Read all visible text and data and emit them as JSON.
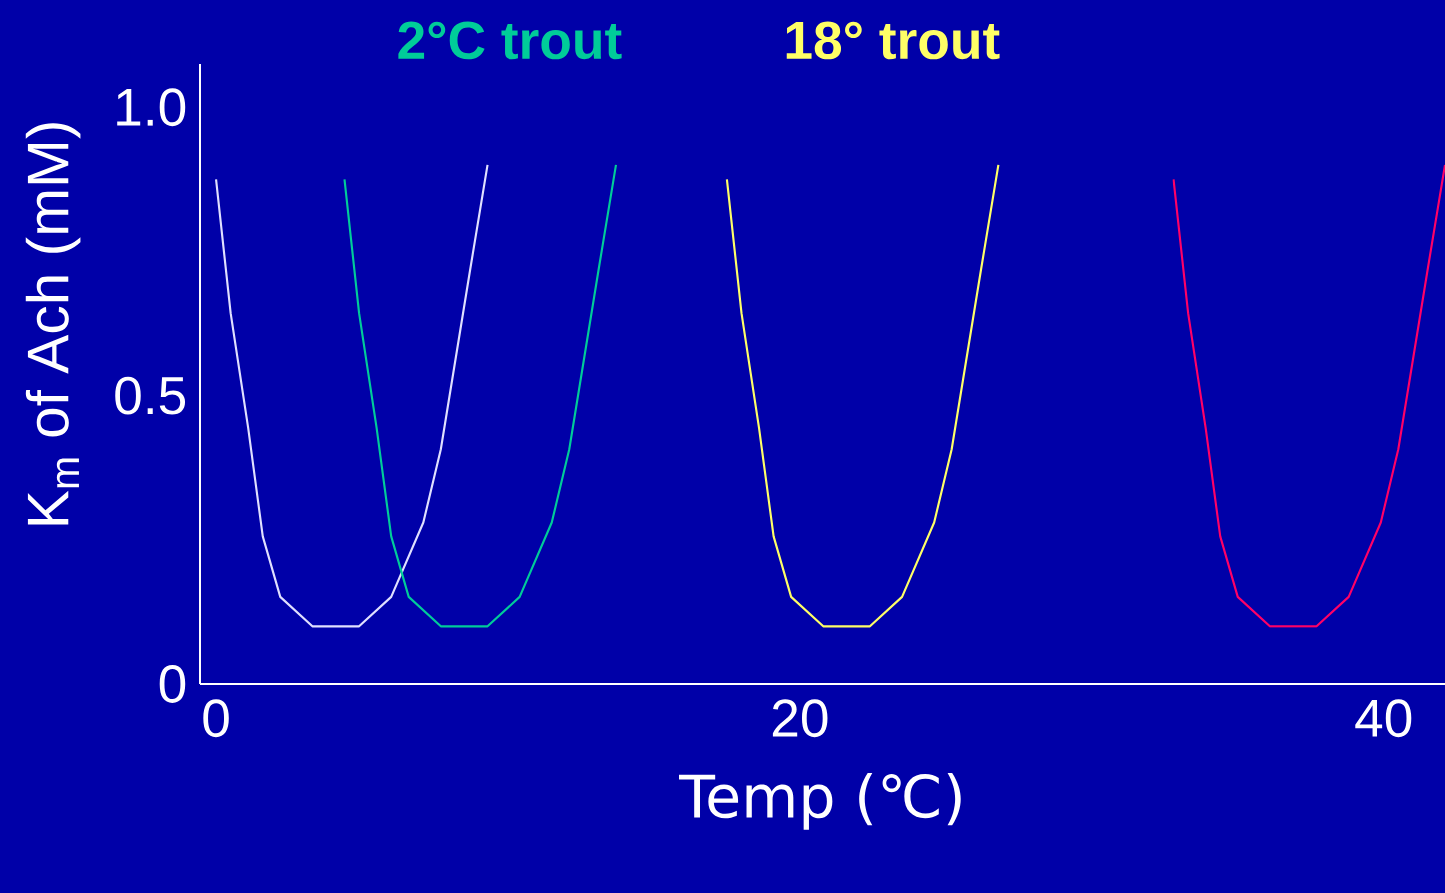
{
  "chart_data": {
    "type": "line",
    "xlabel": "Temp (℃)",
    "ylabel": "K$_{m}$ of Ach (mM)",
    "xlim": [
      -0.55,
      42.1
    ],
    "ylim": [
      0,
      1.075
    ],
    "xticks": [
      0,
      20,
      40
    ],
    "yticks": [
      0,
      0.5,
      {
        "value": 1.0,
        "label": "1.0"
      }
    ],
    "grid": false,
    "marker": "none",
    "line_style": "solid",
    "series": [
      {
        "color": "#e0e0ff",
        "x": [
          0,
          0.5,
          1.1,
          1.6,
          2.2,
          3.3,
          4.9,
          6.0,
          7.1,
          7.7,
          8.7,
          9.3
        ],
        "values": [
          0.875,
          0.643,
          0.444,
          0.256,
          0.151,
          0.1,
          0.1,
          0.151,
          0.28,
          0.407,
          0.717,
          0.9
        ]
      },
      {
        "name": "2°C trout",
        "color": "#00cc99",
        "x": [
          4.4,
          4.9,
          5.5,
          6.0,
          6.6,
          7.7,
          9.3,
          10.4,
          11.5,
          12.1,
          13.1,
          13.7
        ],
        "values": [
          0.875,
          0.643,
          0.444,
          0.256,
          0.151,
          0.1,
          0.1,
          0.151,
          0.28,
          0.407,
          0.717,
          0.9
        ]
      },
      {
        "name": "18° trout",
        "color": "#ffff66",
        "x": [
          17.5,
          18.0,
          18.6,
          19.1,
          19.7,
          20.8,
          22.4,
          23.5,
          24.6,
          25.2,
          26.2,
          26.8
        ],
        "values": [
          0.875,
          0.643,
          0.444,
          0.256,
          0.151,
          0.1,
          0.1,
          0.151,
          0.28,
          0.407,
          0.717,
          0.9
        ]
      },
      {
        "color": "#ff0066",
        "x": [
          32.8,
          33.3,
          33.9,
          34.4,
          35.0,
          36.1,
          37.7,
          38.8,
          39.9,
          40.5,
          41.5,
          42.1
        ],
        "values": [
          0.875,
          0.643,
          0.444,
          0.256,
          0.151,
          0.1,
          0.1,
          0.151,
          0.28,
          0.407,
          0.717,
          0.9
        ]
      }
    ]
  }
}
